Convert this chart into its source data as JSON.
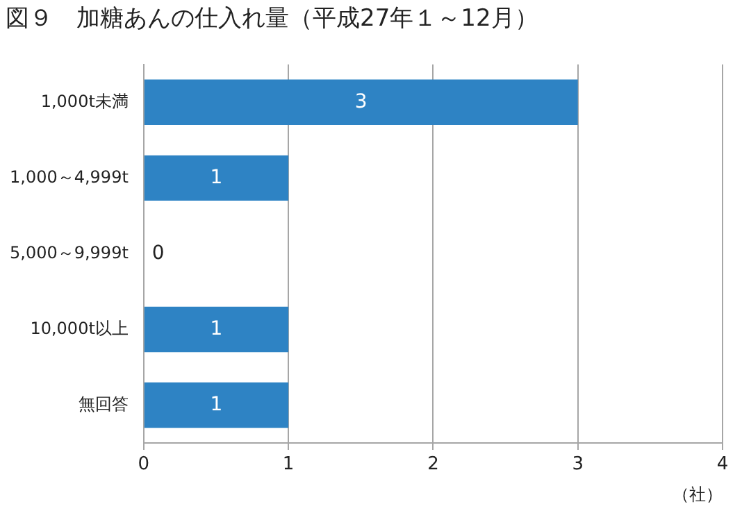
{
  "chart_data": {
    "type": "bar",
    "orientation": "horizontal",
    "title": "図９　加糖あんの仕入れ量（平成27年１～12月）",
    "xlabel": "（社）",
    "categories": [
      "1,000t未満",
      "1,000～4,999t",
      "5,000～9,999t",
      "10,000t以上",
      "無回答"
    ],
    "values": [
      3,
      1,
      0,
      1,
      1
    ],
    "color": "#2e83c4",
    "xlim": [
      0,
      4
    ],
    "xticks": [
      0,
      1,
      2,
      3,
      4
    ],
    "grid": "x",
    "data_labels": true
  }
}
